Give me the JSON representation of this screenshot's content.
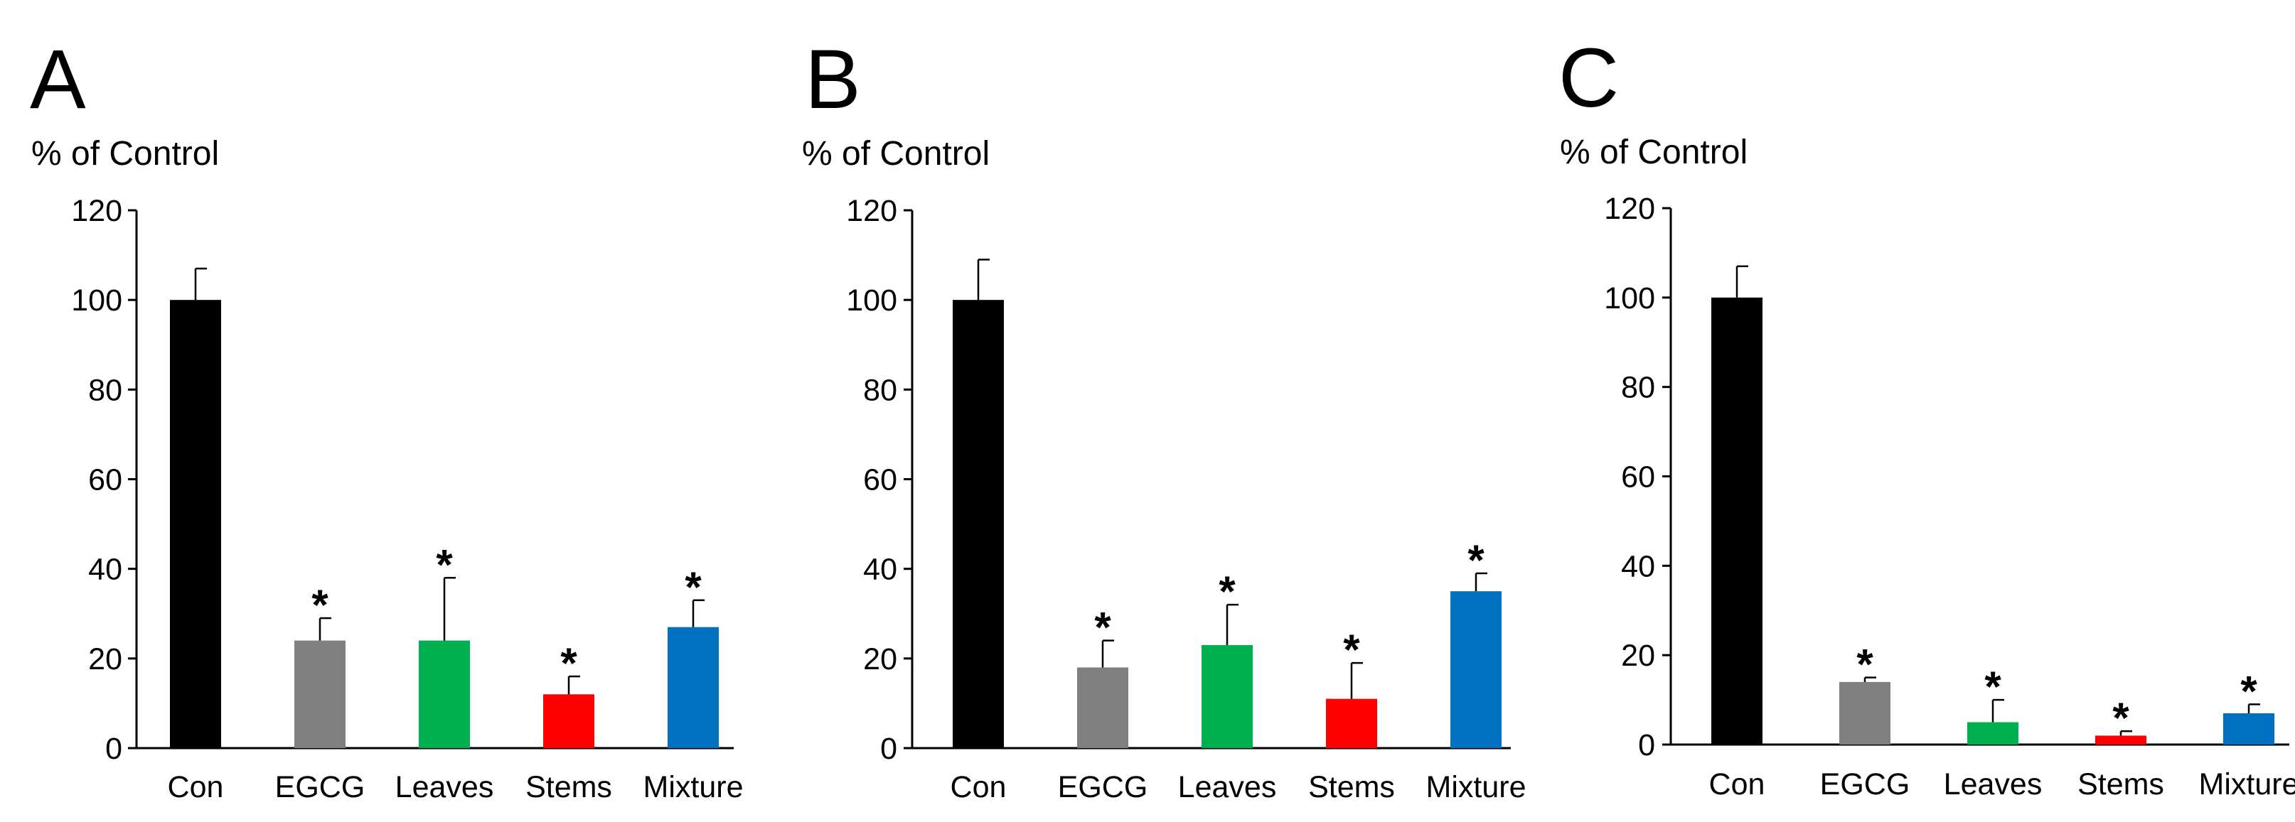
{
  "chart_data": [
    {
      "type": "bar",
      "panel": "A",
      "ylabel": "% of Control",
      "ylim": [
        0,
        120
      ],
      "yticks": [
        "0",
        "20",
        "40",
        "60",
        "80",
        "100",
        "120"
      ],
      "categories": [
        "Con",
        "EGCG",
        "Leaves",
        "Stems",
        "Mixture"
      ],
      "values": [
        100,
        24,
        24,
        12,
        27
      ],
      "errors": [
        7,
        5,
        14,
        4,
        6
      ],
      "colors": [
        "#000000",
        "#808080",
        "#00b050",
        "#ff0000",
        "#0070c0"
      ],
      "significance": [
        "",
        "*",
        "*",
        "*",
        "*"
      ]
    },
    {
      "type": "bar",
      "panel": "B",
      "ylabel": "% of Control",
      "ylim": [
        0,
        120
      ],
      "yticks": [
        "0",
        "20",
        "40",
        "60",
        "80",
        "100",
        "120"
      ],
      "categories": [
        "Con",
        "EGCG",
        "Leaves",
        "Stems",
        "Mixture"
      ],
      "values": [
        100,
        18,
        23,
        11,
        35
      ],
      "errors": [
        9,
        6,
        9,
        8,
        4
      ],
      "colors": [
        "#000000",
        "#808080",
        "#00b050",
        "#ff0000",
        "#0070c0"
      ],
      "significance": [
        "",
        "*",
        "*",
        "*",
        "*"
      ]
    },
    {
      "type": "bar",
      "panel": "C",
      "ylabel": "% of Control",
      "ylim": [
        0,
        120
      ],
      "yticks": [
        "0",
        "20",
        "40",
        "60",
        "80",
        "100",
        "120"
      ],
      "categories": [
        "Con",
        "EGCG",
        "Leaves",
        "Stems",
        "Mixture"
      ],
      "values": [
        100,
        14,
        5,
        2,
        7
      ],
      "errors": [
        7,
        1,
        5,
        1,
        2
      ],
      "colors": [
        "#000000",
        "#808080",
        "#00b050",
        "#ff0000",
        "#0070c0"
      ],
      "significance": [
        "",
        "*",
        "*",
        "*",
        "*"
      ]
    }
  ]
}
